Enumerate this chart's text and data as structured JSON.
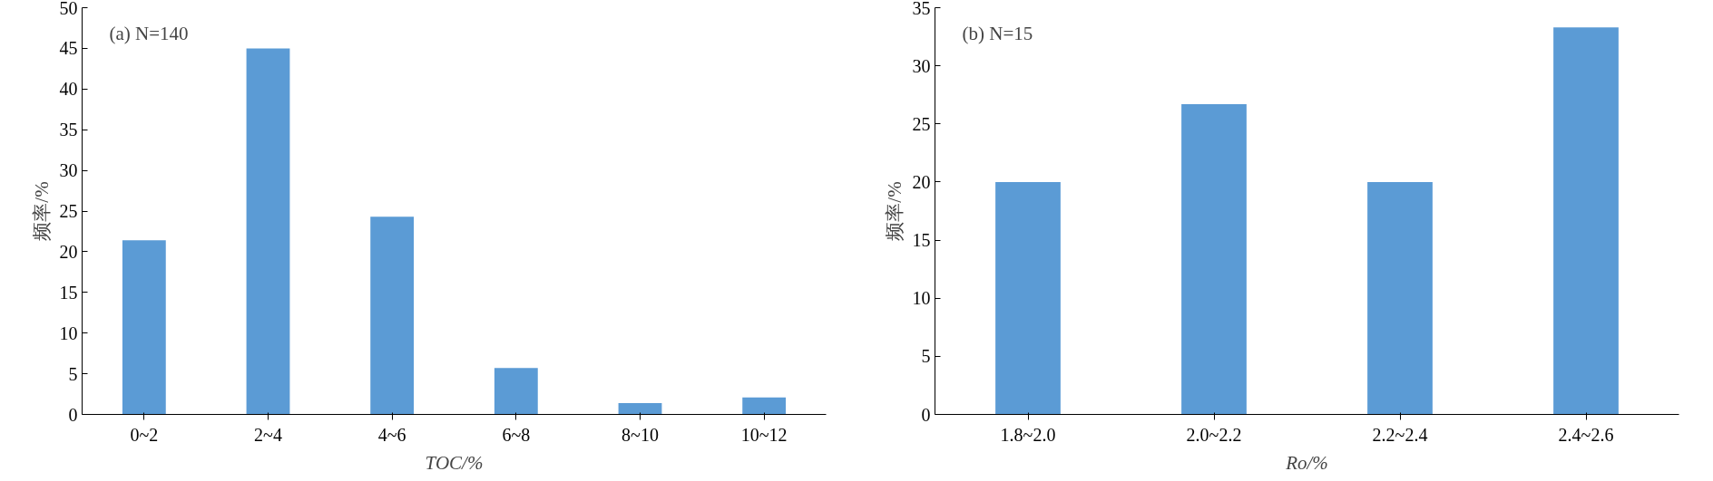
{
  "chart_data": [
    {
      "type": "bar",
      "annotations": [
        "(a) N=140"
      ],
      "xlabel": "TOC/%",
      "ylabel": "频率/%",
      "categories": [
        "0~2",
        "2~4",
        "4~6",
        "6~8",
        "8~10",
        "10~12"
      ],
      "values": [
        21.4,
        45.0,
        24.3,
        5.7,
        1.4,
        2.1
      ],
      "color": "#5b9bd5",
      "ylim": [
        0,
        50
      ],
      "yticks": [
        0,
        5,
        10,
        15,
        20,
        25,
        30,
        35,
        40,
        45,
        50
      ],
      "grid": false
    },
    {
      "type": "bar",
      "annotations": [
        "(b) N=15"
      ],
      "xlabel": "Ro/%",
      "ylabel": "频率/%",
      "categories": [
        "1.8~2.0",
        "2.0~2.2",
        "2.2~2.4",
        "2.4~2.6"
      ],
      "values": [
        20.0,
        26.7,
        20.0,
        33.3
      ],
      "color": "#5b9bd5",
      "ylim": [
        0,
        35
      ],
      "yticks": [
        0,
        5,
        10,
        15,
        20,
        25,
        30,
        35
      ],
      "grid": false
    }
  ]
}
